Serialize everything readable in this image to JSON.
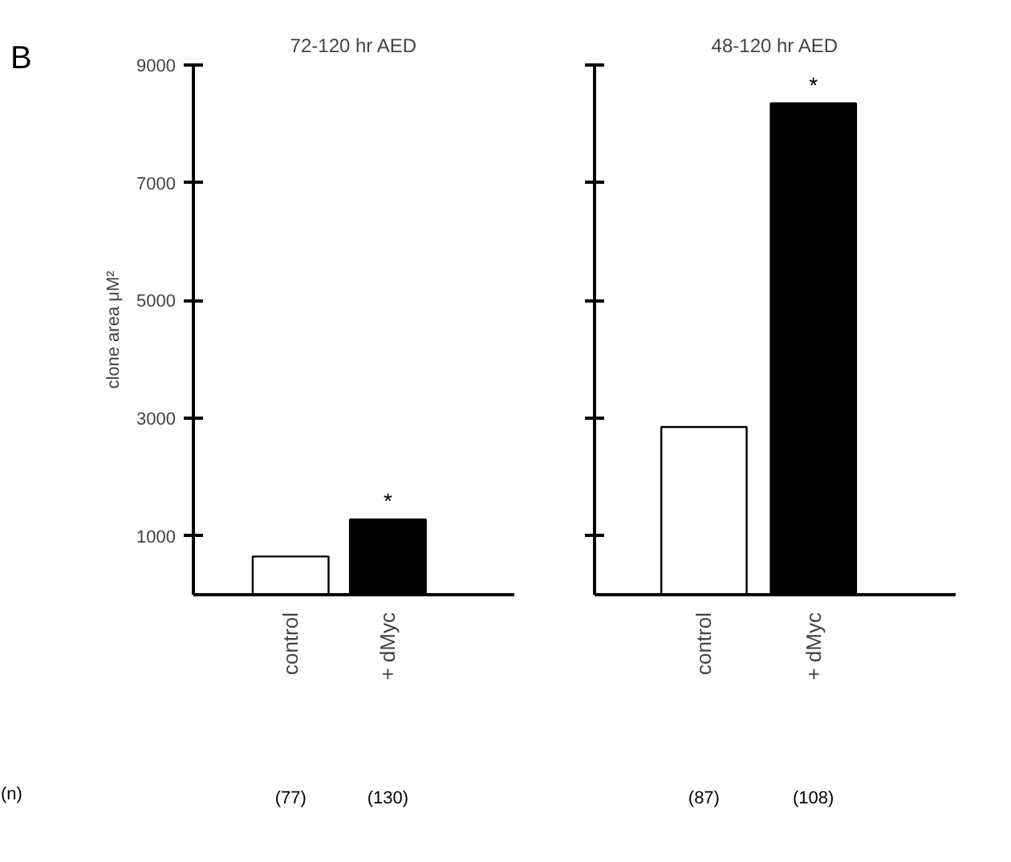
{
  "chart_data": [
    {
      "type": "bar",
      "title": "72-120 hr AED",
      "ylabel": "clone area μM²",
      "categories": [
        "control",
        "+ dMyc"
      ],
      "values": [
        650,
        1280
      ],
      "colors": [
        "#ffffff",
        "#000000"
      ],
      "ylim": [
        0,
        9000
      ],
      "yticks": [
        1000,
        3000,
        5000,
        7000,
        9000
      ],
      "grid": false,
      "annotations": [
        "B",
        "(n)",
        "*",
        "(77)",
        "(130)"
      ]
    },
    {
      "type": "bar",
      "title": "48-120 hr AED",
      "categories": [
        "control",
        "+ dMyc"
      ],
      "values": [
        2850,
        8350
      ],
      "colors": [
        "#ffffff",
        "#000000"
      ],
      "ylim": [
        0,
        9000
      ],
      "yticks": [
        1000,
        3000,
        5000,
        7000,
        9000
      ],
      "grid": false,
      "tick_labels": "x",
      "annotations": [
        "*",
        "(87)",
        "(108)"
      ]
    }
  ]
}
